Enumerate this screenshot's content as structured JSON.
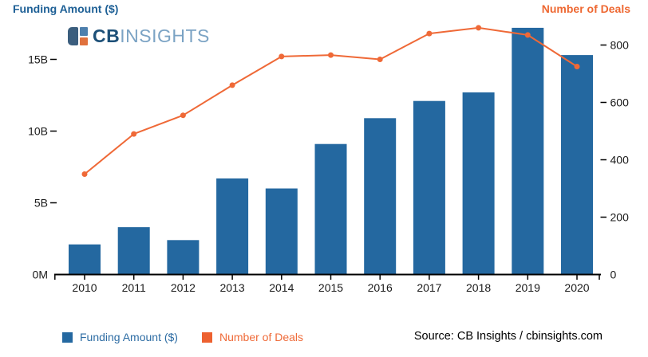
{
  "header": {
    "left_axis_title": "Funding Amount ($)",
    "right_axis_title": "Number of Deals"
  },
  "logo": {
    "name": "CB Insights",
    "text_bold": "CB",
    "text_light": "INSIGHTS"
  },
  "legend": {
    "items": [
      {
        "label": "Funding Amount ($)",
        "color": "#2468a0"
      },
      {
        "label": "Number of Deals",
        "color": "#ed6130"
      }
    ]
  },
  "source": "Source: CB Insights / cbinsights.com",
  "colors": {
    "bar_blue": "#2468a0",
    "line_orange": "#ef6937",
    "left_title_blue": "#1e6096",
    "right_title_orange": "#ee6832",
    "axis_black": "#000000"
  },
  "chart_data": {
    "type": "bar+line combo",
    "title": "",
    "categories": [
      "2010",
      "2011",
      "2012",
      "2013",
      "2014",
      "2015",
      "2016",
      "2017",
      "2018",
      "2019",
      "2020"
    ],
    "series": [
      {
        "name": "Funding Amount ($)",
        "type": "bar",
        "axis": "left",
        "unit": "billions USD",
        "values": [
          2.1,
          3.3,
          2.4,
          6.7,
          6.0,
          9.1,
          10.9,
          12.1,
          12.7,
          17.2,
          15.3
        ]
      },
      {
        "name": "Number of Deals",
        "type": "line",
        "axis": "right",
        "unit": "deals",
        "values": [
          350,
          490,
          555,
          660,
          760,
          765,
          750,
          840,
          860,
          835,
          725
        ]
      }
    ],
    "left_axis": {
      "title": "Funding Amount ($)",
      "tick_values": [
        0,
        5,
        10,
        15
      ],
      "tick_labels": [
        "0M",
        "5B",
        "10B",
        "15B"
      ],
      "range": [
        0,
        19.2
      ]
    },
    "right_axis": {
      "title": "Number of Deals",
      "tick_values": [
        0,
        200,
        400,
        600,
        800
      ],
      "tick_labels": [
        "0",
        "200",
        "400",
        "600",
        "800"
      ],
      "range": [
        0,
        960
      ]
    },
    "grid": false,
    "legend_position": "bottom"
  }
}
